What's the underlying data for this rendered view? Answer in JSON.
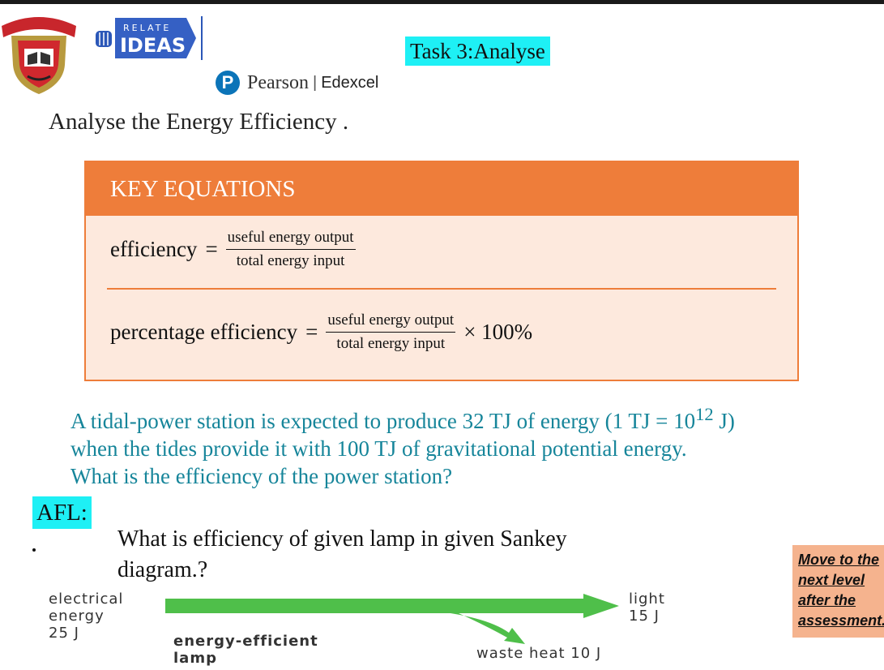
{
  "header": {
    "logo_text_top": "RELATE",
    "logo_text_main": "IDEAS",
    "task_label": "Task 3:Analyse",
    "publisher": "Pearson",
    "publisher_separator": "|",
    "publisher_sub": "Edexcel"
  },
  "heading": "Analyse the Energy Efficiency .",
  "key_equations": {
    "title": "KEY EQUATIONS",
    "eq1_lhs": "efficiency",
    "eq1_num": "useful energy output",
    "eq1_den": "total energy input",
    "eq2_lhs": "percentage efficiency",
    "eq2_num": "useful energy output",
    "eq2_den": "total energy input",
    "eq2_suffix": "× 100%"
  },
  "question": {
    "line1_pre": "A tidal-power station is expected to produce 32 TJ of energy (1 TJ = 10",
    "line1_sup": "12",
    "line1_post": " J)",
    "line2": "when the tides provide it with 100 TJ of gravitational potential energy.",
    "line3": "What is the efficiency of the power station?"
  },
  "afl": {
    "label": "AFL:",
    "question_line1": "What is efficiency of given lamp in given Sankey",
    "question_line2": "diagram.?"
  },
  "move_box": {
    "line1": "Move to the",
    "line2": "next level",
    "line3": "after the",
    "line4": "assessment."
  },
  "sankey": {
    "input_label_line1": "electrical",
    "input_label_line2": "energy",
    "input_value": "25 J",
    "output_label": "light",
    "output_value": "15 J",
    "device_line1": "energy-efficient",
    "device_line2": "lamp",
    "waste_label": "waste heat 10 J",
    "arrow_color": "#4fbf4a"
  },
  "colors": {
    "accent_orange": "#ee7d3a",
    "box_fill": "#fde9dd",
    "highlight_cyan": "#1ef0f5",
    "question_teal": "#16859a",
    "move_box_fill": "#f5b38e",
    "pearson_blue": "#0b74b8"
  }
}
